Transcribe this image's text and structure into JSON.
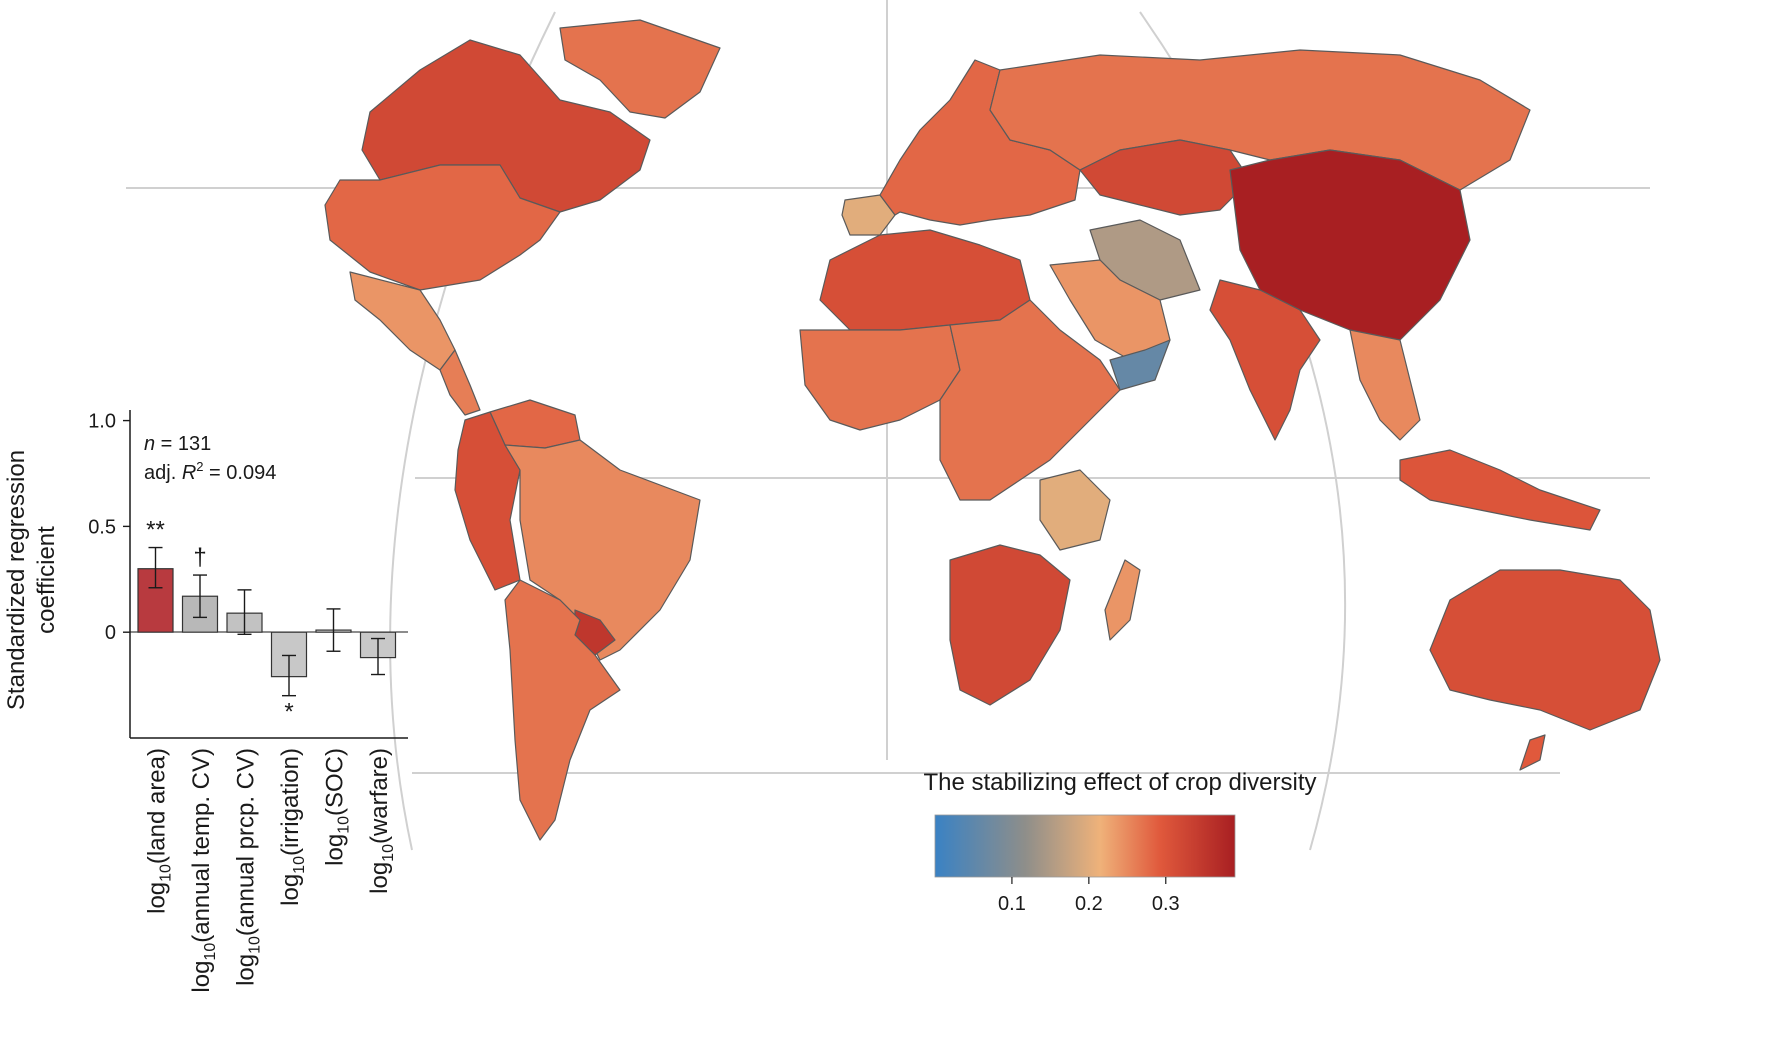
{
  "map": {
    "colors": {
      "low": "#3a82c4",
      "mid_low": "#8e8e8a",
      "mid": "#efb27a",
      "high_mid": "#e0593c",
      "high": "#a81f22",
      "no_data": "#ffffff"
    },
    "colorbar": {
      "title": "The stabilizing effect of crop diversity",
      "ticks": [
        "0.1",
        "0.2",
        "0.3"
      ],
      "tick_values": [
        0.1,
        0.2,
        0.3
      ],
      "range": [
        0.0,
        0.39
      ]
    }
  },
  "regions": [
    {
      "name": "Canada",
      "value": 0.32
    },
    {
      "name": "Greenland",
      "value": 0.27
    },
    {
      "name": "USA",
      "value": 0.28
    },
    {
      "name": "Mexico",
      "value": 0.24
    },
    {
      "name": "Central America",
      "value": 0.26
    },
    {
      "name": "Colombia-Ecuador-Peru",
      "value": 0.31
    },
    {
      "name": "Venezuela",
      "value": 0.28
    },
    {
      "name": "Brazil",
      "value": 0.25
    },
    {
      "name": "Paraguay",
      "value": 0.35
    },
    {
      "name": "Argentina-Chile",
      "value": 0.27
    },
    {
      "name": "Russia",
      "value": 0.27
    },
    {
      "name": "Kazakhstan",
      "value": 0.32
    },
    {
      "name": "China",
      "value": 0.39
    },
    {
      "name": "India",
      "value": 0.31
    },
    {
      "name": "Iran",
      "value": 0.15
    },
    {
      "name": "Saudi Arabia",
      "value": 0.24
    },
    {
      "name": "Yemen",
      "value": 0.06
    },
    {
      "name": "Europe",
      "value": 0.28
    },
    {
      "name": "Spain",
      "value": 0.2
    },
    {
      "name": "North Africa",
      "value": 0.31
    },
    {
      "name": "West Africa",
      "value": 0.27
    },
    {
      "name": "Central Africa",
      "value": 0.27
    },
    {
      "name": "Tanzania",
      "value": 0.2
    },
    {
      "name": "Southern Africa",
      "value": 0.32
    },
    {
      "name": "Madagascar",
      "value": 0.24
    },
    {
      "name": "Southeast Asia",
      "value": 0.25
    },
    {
      "name": "Indonesia",
      "value": 0.3
    },
    {
      "name": "Australia",
      "value": 0.31
    }
  ],
  "chart_data": {
    "type": "bar",
    "categories": [
      "log10(land area)",
      "log10(annual temp. CV)",
      "log10(annual prcp. CV)",
      "log10(irrigation)",
      "log10(SOC)",
      "log10(warfare)"
    ],
    "category_labels": [
      {
        "pre": "log",
        "sub": "10",
        "post": "(land area)"
      },
      {
        "pre": "log",
        "sub": "10",
        "post": "(annual temp. CV)"
      },
      {
        "pre": "log",
        "sub": "10",
        "post": "(annual prcp. CV)"
      },
      {
        "pre": "log",
        "sub": "10",
        "post": "(irrigation)"
      },
      {
        "pre": "log",
        "sub": "10",
        "post": "(SOC)"
      },
      {
        "pre": "log",
        "sub": "10",
        "post": "(warfare)"
      }
    ],
    "values": [
      0.3,
      0.17,
      0.09,
      -0.21,
      0.01,
      -0.12
    ],
    "err_low": [
      0.21,
      0.07,
      -0.01,
      -0.3,
      -0.09,
      -0.2
    ],
    "err_high": [
      0.4,
      0.27,
      0.2,
      -0.11,
      0.11,
      -0.03
    ],
    "significance": [
      "**",
      "†",
      "",
      "*",
      "",
      ""
    ],
    "colors": [
      "#b83a3f",
      "#b8b8b8",
      "#c2c2c2",
      "#c8c8c8",
      "#d6d6d6",
      "#c8c8c8"
    ],
    "ylabel_line1": "Standardized regression",
    "ylabel_line2": "coefficient",
    "yticks": [
      1.0,
      0.5,
      0
    ],
    "ytick_labels": [
      "1.0",
      "0.5",
      "0"
    ],
    "ylim": [
      -0.5,
      1.05
    ],
    "stats": {
      "n_label": "n",
      "n_value": " = 131",
      "r2_prefix": "adj. ",
      "r2_symbol": "R",
      "r2_exp": "2",
      "r2_value": " = 0.094"
    }
  }
}
